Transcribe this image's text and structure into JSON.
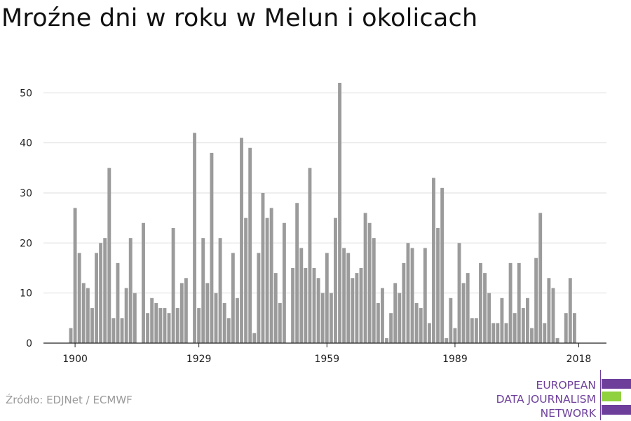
{
  "title": "Mroźne dni w roku w Melun i okolicach",
  "source": "Źródło: EDJNet / ECMWF",
  "logo": {
    "lines": [
      "EUROPEAN",
      "DATA JOURNALISM",
      "NETWORK"
    ],
    "colors": {
      "purple": "#6d3f9b",
      "green": "#8fd13f"
    }
  },
  "chart_data": {
    "type": "bar",
    "title": "Mroźne dni w roku w Melun i okolicach",
    "xlabel": "",
    "ylabel": "",
    "bar_color": "#9b9b9b",
    "grid_color": "#dddddd",
    "grid": true,
    "ylim": [
      0,
      52
    ],
    "yticks": [
      0,
      10,
      20,
      30,
      40,
      50
    ],
    "xticks": [
      1900,
      1929,
      1959,
      1989,
      2018
    ],
    "x": [
      1899,
      1900,
      1901,
      1902,
      1903,
      1904,
      1905,
      1906,
      1907,
      1908,
      1909,
      1910,
      1911,
      1912,
      1913,
      1914,
      1915,
      1916,
      1917,
      1918,
      1919,
      1920,
      1921,
      1922,
      1923,
      1924,
      1925,
      1926,
      1927,
      1928,
      1929,
      1930,
      1931,
      1932,
      1933,
      1934,
      1935,
      1936,
      1937,
      1938,
      1939,
      1940,
      1941,
      1942,
      1943,
      1944,
      1945,
      1946,
      1947,
      1948,
      1949,
      1950,
      1951,
      1952,
      1953,
      1954,
      1955,
      1956,
      1957,
      1958,
      1959,
      1960,
      1961,
      1962,
      1963,
      1964,
      1965,
      1966,
      1967,
      1968,
      1969,
      1970,
      1971,
      1972,
      1973,
      1974,
      1975,
      1976,
      1977,
      1978,
      1979,
      1980,
      1981,
      1982,
      1983,
      1984,
      1985,
      1986,
      1987,
      1988,
      1989,
      1990,
      1991,
      1992,
      1993,
      1994,
      1995,
      1996,
      1997,
      1998,
      1999,
      2000,
      2001,
      2002,
      2003,
      2004,
      2005,
      2006,
      2007,
      2008,
      2009,
      2010,
      2011,
      2012,
      2013,
      2014,
      2015,
      2016,
      2017,
      2018
    ],
    "values": [
      3,
      27,
      18,
      12,
      11,
      7,
      18,
      20,
      21,
      35,
      5,
      16,
      5,
      11,
      21,
      10,
      0,
      24,
      6,
      9,
      8,
      7,
      7,
      6,
      23,
      7,
      12,
      13,
      0,
      42,
      7,
      21,
      12,
      38,
      10,
      21,
      8,
      5,
      18,
      9,
      41,
      25,
      39,
      2,
      18,
      30,
      25,
      27,
      14,
      8,
      24,
      0,
      15,
      28,
      19,
      15,
      35,
      15,
      13,
      10,
      18,
      10,
      25,
      52,
      19,
      18,
      13,
      14,
      15,
      26,
      24,
      21,
      8,
      11,
      1,
      6,
      12,
      10,
      16,
      20,
      19,
      8,
      7,
      19,
      4,
      33,
      23,
      31,
      1,
      9,
      3,
      20,
      12,
      14,
      5,
      5,
      16,
      14,
      10,
      4,
      4,
      9,
      4,
      16,
      6,
      16,
      7,
      9,
      3,
      17,
      26,
      4,
      13,
      11,
      1,
      0,
      6,
      13,
      6,
      0
    ]
  }
}
